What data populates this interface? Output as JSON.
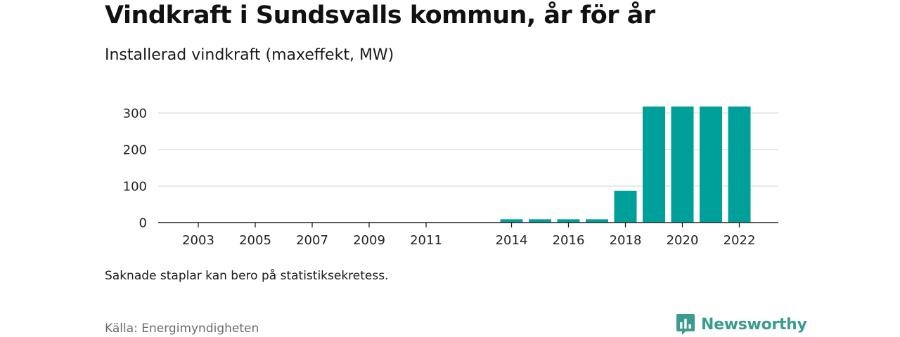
{
  "title": "Vindkraft i Sundsvalls kommun, år för år",
  "subtitle": "Installerad vindkraft (maxeffekt, MW)",
  "note": "Saknade staplar kan bero på statistiksekretess.",
  "source": "Källa: Energimyndigheten",
  "brand": {
    "name": "Newsworthy",
    "icon": "newsworthy-logo-icon",
    "color": "#3a9c8f"
  },
  "colors": {
    "bar": "#00a09a",
    "grid": "#d9d9d9",
    "axis": "#222222"
  },
  "chart_data": {
    "type": "bar",
    "categories": [
      "2003",
      "2004",
      "2005",
      "2006",
      "2007",
      "2008",
      "2009",
      "2010",
      "2011",
      "2012",
      "2013",
      "2014",
      "2015",
      "2016",
      "2017",
      "2018",
      "2019",
      "2020",
      "2021",
      "2022"
    ],
    "values": [
      null,
      null,
      null,
      null,
      null,
      null,
      null,
      null,
      null,
      null,
      null,
      9,
      9,
      9,
      9,
      87,
      318,
      318,
      318,
      318
    ],
    "x_tick_labels": [
      "2003",
      "2005",
      "2007",
      "2009",
      "2011",
      "2014",
      "2016",
      "2018",
      "2020",
      "2022"
    ],
    "y_ticks": [
      0,
      100,
      200,
      300
    ],
    "ylim": [
      0,
      330
    ],
    "grid": true,
    "legend": "none"
  }
}
